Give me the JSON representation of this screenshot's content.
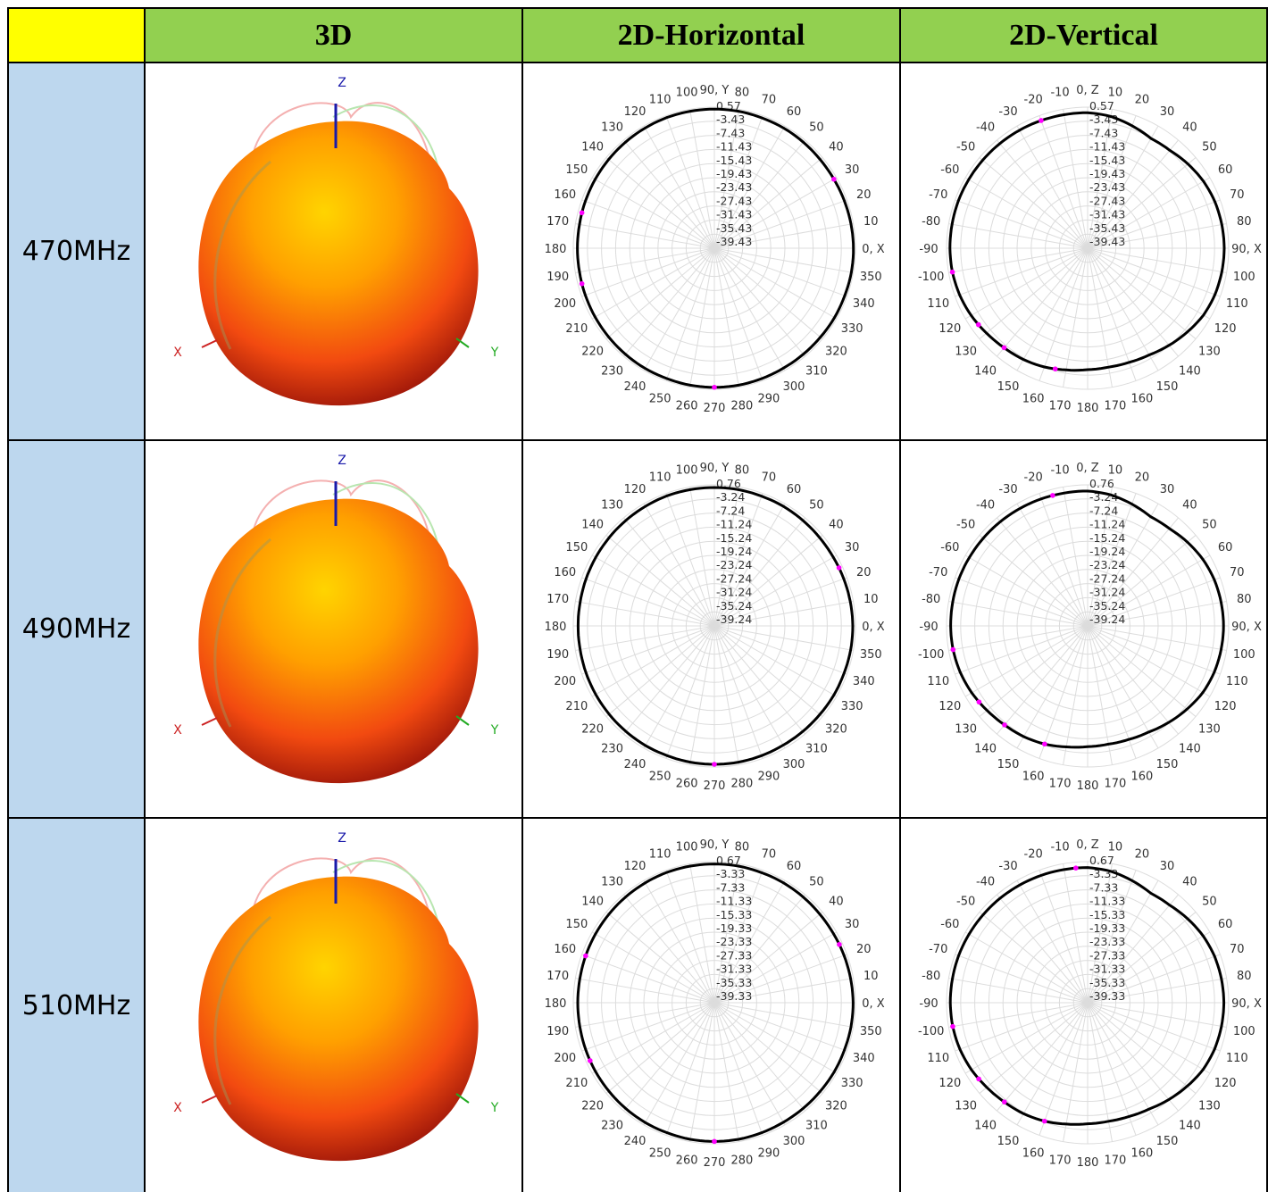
{
  "headers": {
    "corner": "",
    "col_3d": "3D",
    "col_h": "2D-Horizontal",
    "col_v": "2D-Vertical"
  },
  "rows": [
    {
      "freq": "470MHz"
    },
    {
      "freq": "490MHz"
    },
    {
      "freq": "510MHz"
    }
  ],
  "colors": {
    "header_bg": "#92d050",
    "corner_bg": "#ffff00",
    "freq_bg": "#bdd7ee",
    "pattern_line": "#000000",
    "marker": "#ff00ff",
    "axis_x": "#cc2222",
    "axis_y": "#22aa22",
    "axis_z": "#1a1aaa"
  },
  "axis_labels_3d": {
    "x": "X",
    "y": "Y",
    "z": "Z"
  },
  "chart_data": [
    {
      "type": "polar",
      "freq": "470MHz",
      "plane": "horizontal",
      "angle_labels": [
        "0, X",
        "10",
        "20",
        "30",
        "40",
        "50",
        "60",
        "70",
        "80",
        "90, Y",
        "100",
        "110",
        "120",
        "130",
        "140",
        "150",
        "160",
        "170",
        "180",
        "190",
        "200",
        "210",
        "220",
        "230",
        "240",
        "250",
        "260",
        "270",
        "280",
        "290",
        "300",
        "310",
        "320",
        "330",
        "340",
        "350"
      ],
      "rings": [
        "0.57",
        "-3.43",
        "-7.43",
        "-11.43",
        "-15.43",
        "-19.43",
        "-23.43",
        "-27.43",
        "-31.43",
        "-35.43",
        "-39.43"
      ],
      "peak_dbi": 0.57,
      "min_db": -39.43,
      "gain_db": [
        0.0,
        -0.1,
        -0.2,
        -0.3,
        -0.3,
        -0.2,
        -0.1,
        -0.1,
        0.0,
        0.0,
        0.0,
        0.0,
        -0.1,
        -0.2,
        -0.3,
        -0.4,
        -0.5,
        -0.6,
        -0.6,
        -0.6,
        -0.5,
        -0.4,
        -0.3,
        -0.2,
        -0.1,
        -0.1,
        0.0,
        0.0,
        0.0,
        -0.1,
        -0.2,
        -0.2,
        -0.2,
        -0.1,
        -0.1,
        0.0
      ],
      "markers_deg": [
        30,
        165,
        195,
        270
      ]
    },
    {
      "type": "polar",
      "freq": "470MHz",
      "plane": "vertical",
      "angle_labels": [
        "0, Z",
        "10",
        "20",
        "30",
        "40",
        "50",
        "60",
        "70",
        "80",
        "90, X",
        "100",
        "110",
        "120",
        "130",
        "140",
        "150",
        "160",
        "170",
        "180",
        "170",
        "160",
        "150",
        "140",
        "130",
        "120",
        "110",
        "-100",
        "-90",
        "-80",
        "-70",
        "-60",
        "-50",
        "-40",
        "-30",
        "-20",
        "-10"
      ],
      "rings": [
        "0.57",
        "-3.43",
        "-7.43",
        "-11.43",
        "-15.43",
        "-19.43",
        "-23.43",
        "-27.43",
        "-31.43",
        "-35.43",
        "-39.43"
      ],
      "peak_dbi": 0.57,
      "min_db": -39.43,
      "gain_db": [
        -1.0,
        -1.5,
        -2.5,
        -3.5,
        -3.2,
        -2.3,
        -1.5,
        -1.0,
        -0.8,
        -0.7,
        -0.8,
        -1.0,
        -1.5,
        -2.5,
        -3.5,
        -4.5,
        -5.0,
        -5.2,
        -5.0,
        -4.4,
        -3.6,
        -3.0,
        -2.6,
        -2.0,
        -1.3,
        -0.8,
        -0.5,
        -0.4,
        -0.4,
        -0.4,
        -0.5,
        -0.6,
        -0.7,
        -0.8,
        -0.9,
        -1.0
      ],
      "markers_deg": [
        -20,
        -100,
        -125,
        -140,
        -165
      ]
    },
    {
      "type": "polar",
      "freq": "490MHz",
      "plane": "horizontal",
      "angle_labels": [
        "0, X",
        "10",
        "20",
        "30",
        "40",
        "50",
        "60",
        "70",
        "80",
        "90, Y",
        "100",
        "110",
        "120",
        "130",
        "140",
        "150",
        "160",
        "170",
        "180",
        "190",
        "200",
        "210",
        "220",
        "230",
        "240",
        "250",
        "260",
        "270",
        "280",
        "290",
        "300",
        "310",
        "320",
        "330",
        "340",
        "350"
      ],
      "rings": [
        "0.76",
        "-3.24",
        "-7.24",
        "-11.24",
        "-15.24",
        "-19.24",
        "-23.24",
        "-27.24",
        "-31.24",
        "-35.24",
        "-39.24"
      ],
      "peak_dbi": 0.76,
      "min_db": -39.24,
      "gain_db": [
        0.0,
        -0.1,
        -0.2,
        -0.3,
        -0.3,
        -0.2,
        -0.1,
        -0.1,
        0.0,
        0.0,
        0.0,
        0.0,
        -0.1,
        -0.2,
        -0.3,
        -0.4,
        -0.5,
        -0.6,
        -0.6,
        -0.6,
        -0.5,
        -0.4,
        -0.3,
        -0.2,
        -0.1,
        -0.1,
        0.0,
        0.0,
        0.0,
        -0.1,
        -0.2,
        -0.2,
        -0.2,
        -0.1,
        -0.1,
        0.0
      ],
      "markers_deg": [
        25,
        270
      ]
    },
    {
      "type": "polar",
      "freq": "490MHz",
      "plane": "vertical",
      "angle_labels": [
        "0, Z",
        "10",
        "20",
        "30",
        "40",
        "50",
        "60",
        "70",
        "80",
        "90, X",
        "100",
        "110",
        "120",
        "130",
        "140",
        "150",
        "160",
        "170",
        "180",
        "170",
        "160",
        "150",
        "140",
        "130",
        "120",
        "110",
        "-100",
        "-90",
        "-80",
        "-70",
        "-60",
        "-50",
        "-40",
        "-30",
        "-20",
        "-10"
      ],
      "rings": [
        "0.76",
        "-3.24",
        "-7.24",
        "-11.24",
        "-15.24",
        "-19.24",
        "-23.24",
        "-27.24",
        "-31.24",
        "-35.24",
        "-39.24"
      ],
      "peak_dbi": 0.76,
      "min_db": -39.24,
      "gain_db": [
        -1.0,
        -1.5,
        -2.5,
        -3.5,
        -3.2,
        -2.3,
        -1.5,
        -1.0,
        -0.8,
        -0.7,
        -0.8,
        -1.0,
        -1.5,
        -2.5,
        -3.5,
        -4.5,
        -5.0,
        -5.2,
        -5.0,
        -4.4,
        -3.6,
        -3.0,
        -2.6,
        -2.0,
        -1.3,
        -0.8,
        -0.5,
        -0.4,
        -0.4,
        -0.4,
        -0.5,
        -0.6,
        -0.7,
        -0.8,
        -0.9,
        -1.0
      ],
      "markers_deg": [
        -15,
        -100,
        -125,
        -140,
        -160
      ]
    },
    {
      "type": "polar",
      "freq": "510MHz",
      "plane": "horizontal",
      "angle_labels": [
        "0, X",
        "10",
        "20",
        "30",
        "40",
        "50",
        "60",
        "70",
        "80",
        "90, Y",
        "100",
        "110",
        "120",
        "130",
        "140",
        "150",
        "160",
        "170",
        "180",
        "190",
        "200",
        "210",
        "220",
        "230",
        "240",
        "250",
        "260",
        "270",
        "280",
        "290",
        "300",
        "310",
        "320",
        "330",
        "340",
        "350"
      ],
      "rings": [
        "0.67",
        "-3.33",
        "-7.33",
        "-11.33",
        "-15.33",
        "-19.33",
        "-23.33",
        "-27.33",
        "-31.33",
        "-35.33",
        "-39.33"
      ],
      "peak_dbi": 0.67,
      "min_db": -39.33,
      "gain_db": [
        0.0,
        -0.1,
        -0.2,
        -0.3,
        -0.3,
        -0.2,
        -0.1,
        -0.1,
        0.0,
        0.0,
        0.0,
        0.0,
        -0.1,
        -0.2,
        -0.3,
        -0.4,
        -0.5,
        -0.6,
        -0.6,
        -0.6,
        -0.5,
        -0.4,
        -0.3,
        -0.2,
        -0.1,
        -0.1,
        0.0,
        0.0,
        0.0,
        -0.1,
        -0.2,
        -0.2,
        -0.2,
        -0.1,
        -0.1,
        0.0
      ],
      "markers_deg": [
        25,
        160,
        205,
        270
      ]
    },
    {
      "type": "polar",
      "freq": "510MHz",
      "plane": "vertical",
      "angle_labels": [
        "0, Z",
        "10",
        "20",
        "30",
        "40",
        "50",
        "60",
        "70",
        "80",
        "90, X",
        "100",
        "110",
        "120",
        "130",
        "140",
        "150",
        "160",
        "170",
        "180",
        "170",
        "160",
        "150",
        "140",
        "130",
        "120",
        "110",
        "-100",
        "-90",
        "-80",
        "-70",
        "-60",
        "-50",
        "-40",
        "-30",
        "-20",
        "-10"
      ],
      "rings": [
        "0.67",
        "-3.33",
        "-7.33",
        "-11.33",
        "-15.33",
        "-19.33",
        "-23.33",
        "-27.33",
        "-31.33",
        "-35.33",
        "-39.33"
      ],
      "peak_dbi": 0.67,
      "min_db": -39.33,
      "gain_db": [
        -1.0,
        -1.5,
        -2.5,
        -3.5,
        -3.2,
        -2.3,
        -1.5,
        -1.0,
        -0.8,
        -0.7,
        -0.8,
        -1.0,
        -1.5,
        -2.5,
        -3.5,
        -4.5,
        -5.0,
        -5.2,
        -5.0,
        -4.4,
        -3.6,
        -3.0,
        -2.6,
        -2.0,
        -1.3,
        -0.8,
        -0.5,
        -0.4,
        -0.4,
        -0.4,
        -0.5,
        -0.6,
        -0.7,
        -0.8,
        -0.9,
        -1.0
      ],
      "markers_deg": [
        -5,
        -100,
        -125,
        -140,
        -160
      ]
    }
  ]
}
